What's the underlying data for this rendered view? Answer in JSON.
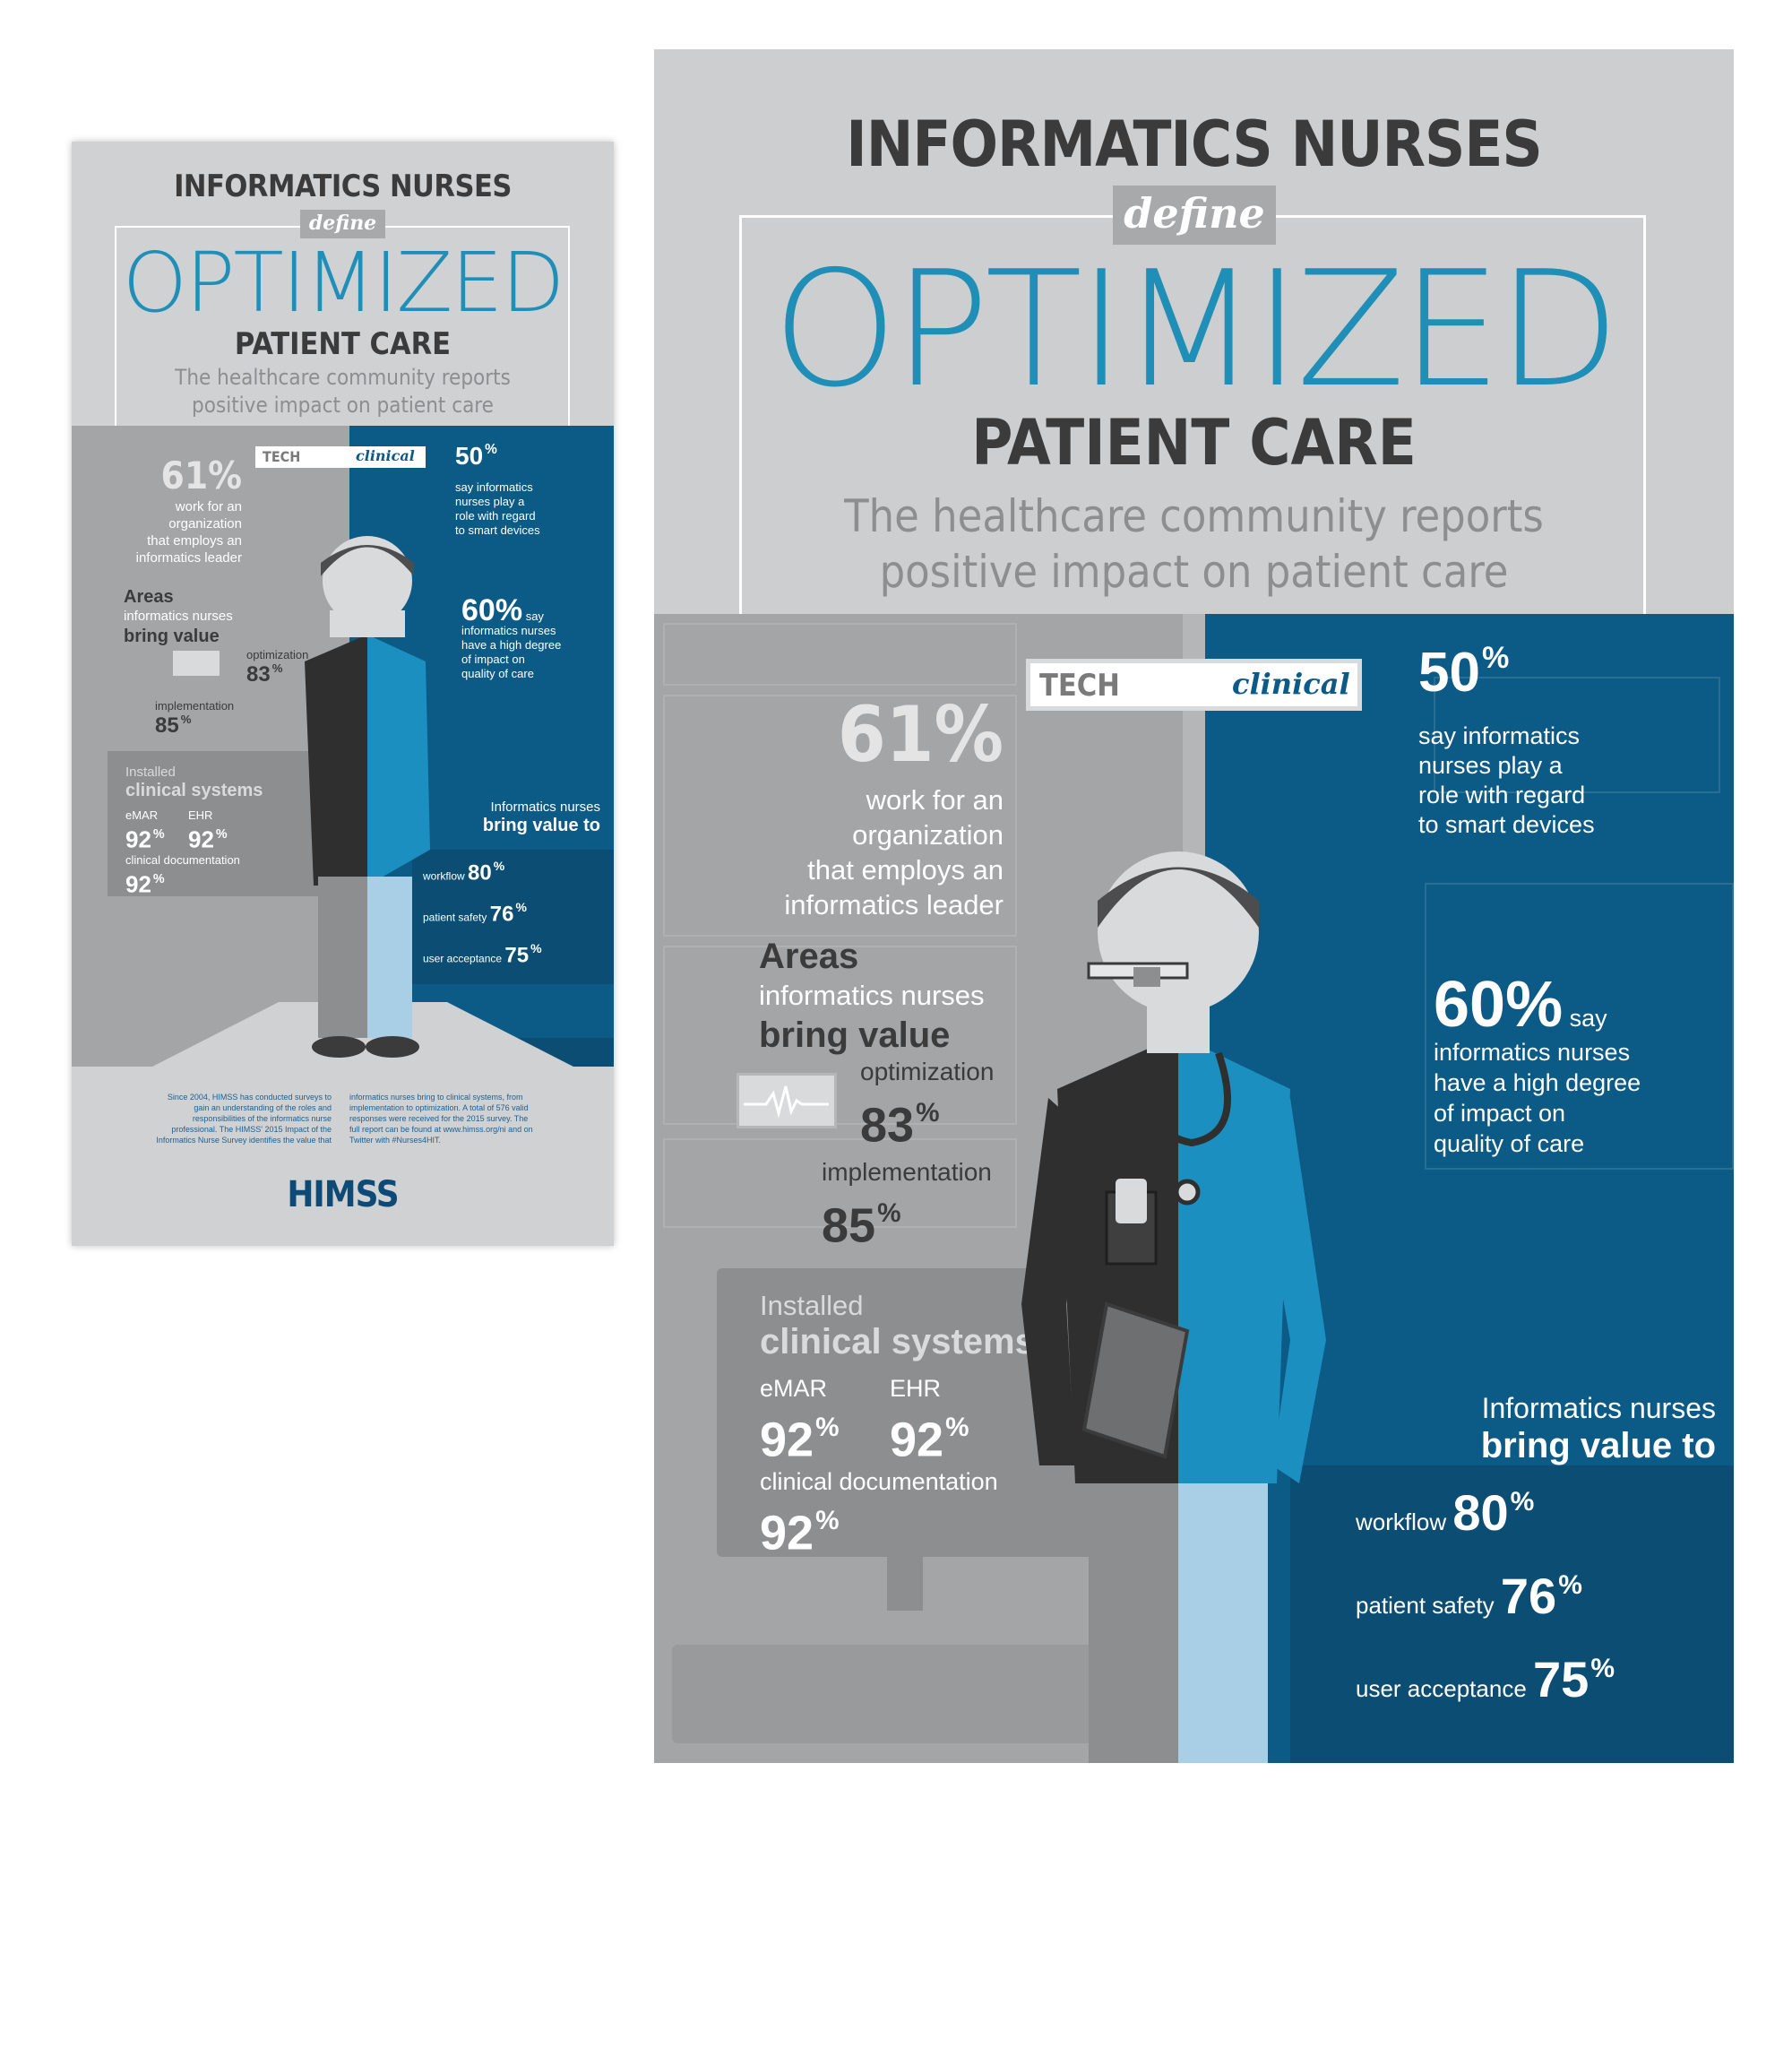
{
  "poster": {
    "title_line1": "INFORMATICS NURSES",
    "define": "define",
    "optimized": "OPTIMIZED",
    "patient_care": "PATIENT CARE",
    "subtitle_line1": "The healthcare community reports",
    "subtitle_line2": "positive impact on patient care",
    "tech": "TECH",
    "clinical": "clinical",
    "stat_61": "61%",
    "stat_61_text": [
      "work for an",
      "organization",
      "that employs an",
      "informatics leader"
    ],
    "areas_title": "Areas",
    "areas_sub": "informatics nurses",
    "areas_bring": "bring value",
    "optimization_label": "optimization",
    "optimization_value": "83",
    "implementation_label": "implementation",
    "implementation_value": "85",
    "installed_label": "Installed",
    "clinical_systems": "clinical systems",
    "emar_label": "eMAR",
    "emar_value": "92",
    "ehr_label": "EHR",
    "ehr_value": "92",
    "clin_doc_label": "clinical documentation",
    "clin_doc_value": "92",
    "stat_50": "50",
    "stat_50_text": [
      "say informatics",
      "nurses play a",
      "role with regard",
      "to smart devices"
    ],
    "stat_60": "60%",
    "stat_60_say": "say",
    "stat_60_text": [
      "informatics nurses",
      "have a high degree",
      "of impact on",
      "quality of care"
    ],
    "bring_value_line1": "Informatics nurses",
    "bring_value_line2": "bring value to",
    "workflow_label": "workflow",
    "workflow_value": "80",
    "patient_safety_label": "patient safety",
    "patient_safety_value": "76",
    "user_acceptance_label": "user acceptance",
    "user_acceptance_value": "75",
    "percent_sign": "%",
    "footer_col1": "Since 2004, HIMSS has conducted surveys to gain an understanding of the roles and responsibilities of the informatics nurse professional. The HIMSS' 2015 Impact of the Informatics Nurse Survey identifies the value that",
    "footer_col2": "informatics nurses bring to clinical systems, from implementation to optimization. A total of 576 valid responses were received for the 2015 survey. The full report can be found at www.himss.org/ni and on Twitter with #Nurses4HIT.",
    "logo": "HIMSS"
  },
  "colors": {
    "accent_blue": "#1f8fb8",
    "dark_blue": "#0c5a86",
    "panel_grey": "#8c8e90",
    "bg_grey": "#cfd1d3"
  }
}
